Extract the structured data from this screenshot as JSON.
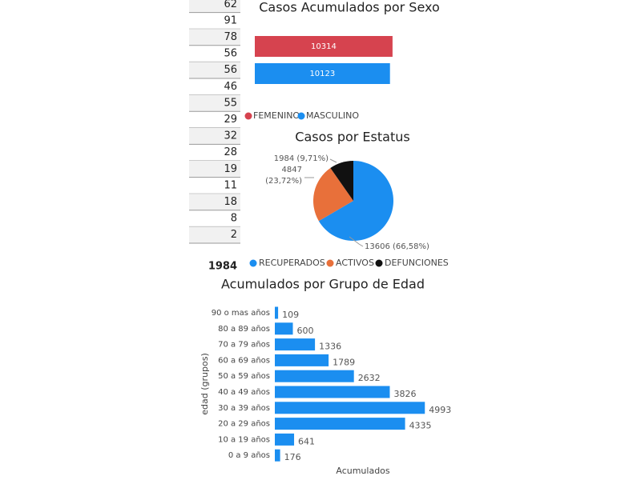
{
  "table": {
    "values": [
      "62",
      "91",
      "78",
      "56",
      "56",
      "46",
      "55",
      "29",
      "32",
      "28",
      "19",
      "11",
      "18",
      "8",
      "2"
    ],
    "total": "1984"
  },
  "chart_data": [
    {
      "type": "bar",
      "title": "Casos Acumulados por Sexo",
      "categories": [
        "FEMENINO",
        "MASCULINO"
      ],
      "values": [
        10314,
        10123
      ],
      "colors": [
        "#d6434f",
        "#1b8ef0"
      ],
      "xlim": [
        0,
        10500
      ],
      "legend": "bottom"
    },
    {
      "type": "pie",
      "title": "Casos por Estatus",
      "categories": [
        "RECUPERADOS",
        "ACTIVOS",
        "DEFUNCIONES"
      ],
      "values": [
        13606,
        4847,
        1984
      ],
      "value_labels": [
        "13606 (66,58%)",
        "4847 (23,72%)",
        "1984 (9,71%)"
      ],
      "colors": [
        "#1b8ef0",
        "#e8703a",
        "#111111"
      ],
      "legend": "bottom"
    },
    {
      "type": "bar",
      "title": "Acumulados por Grupo de Edad",
      "categories": [
        "90 o mas años",
        "80 a 89 años",
        "70 a 79 años",
        "60 a 69 años",
        "50 a 59 años",
        "40 a 49 años",
        "30 a 39 años",
        "20 a 29 años",
        "10 a 19 años",
        "0 a 9 años"
      ],
      "values": [
        109,
        600,
        1336,
        1789,
        2632,
        3826,
        4993,
        4335,
        641,
        176
      ],
      "color": "#1b8ef0",
      "xlim": [
        0,
        5000
      ],
      "xlabel": "Acumulados",
      "ylabel": "edad (grupos)"
    }
  ]
}
